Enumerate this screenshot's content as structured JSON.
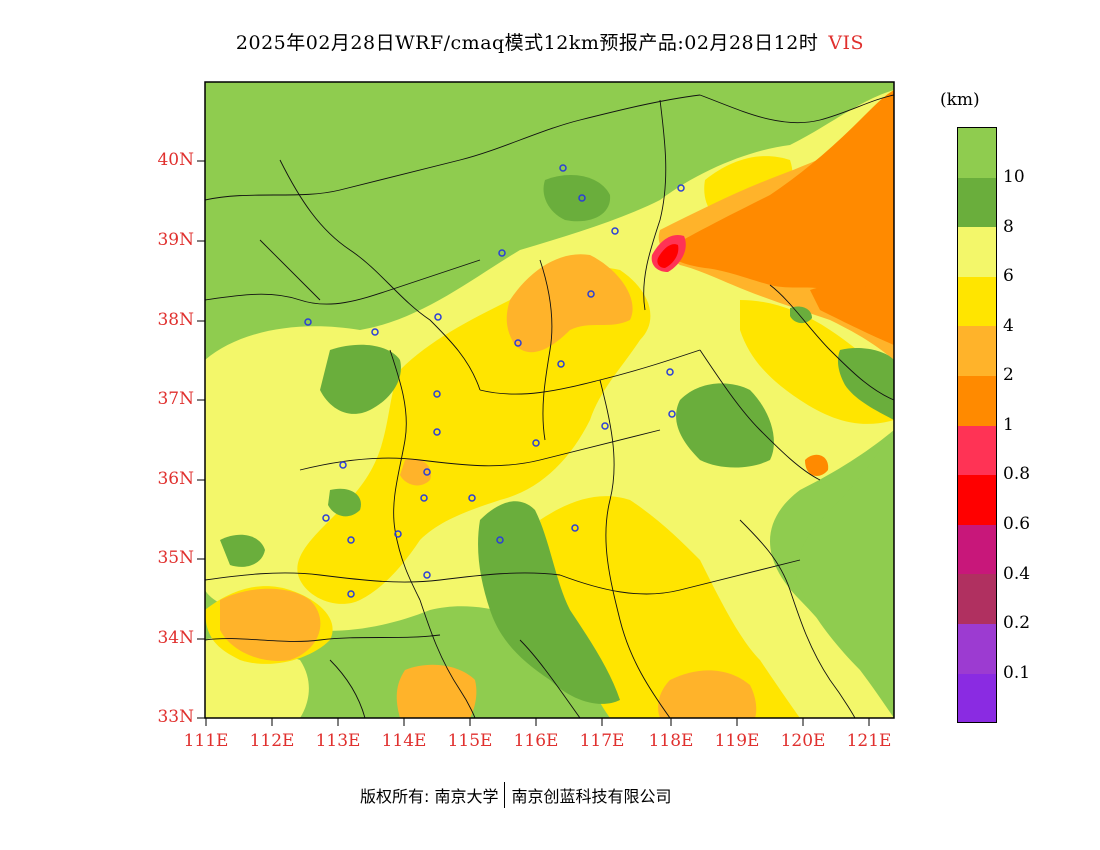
{
  "title": "2025年02月28日WRF/cmaq模式12km预报产品:02月28日12时",
  "variable": "VIS",
  "unit_label": "(km)",
  "credit": {
    "part1": "版权所有: 南京大学",
    "part2": "南京创蓝科技有限公司"
  },
  "lat_labels": [
    "40N",
    "39N",
    "38N",
    "37N",
    "36N",
    "35N",
    "34N",
    "33N"
  ],
  "lon_labels": [
    "111E",
    "112E",
    "113E",
    "114E",
    "115E",
    "116E",
    "117E",
    "118E",
    "119E",
    "120E",
    "121E"
  ],
  "legend": {
    "labels": [
      "10",
      "8",
      "6",
      "4",
      "2",
      "1",
      "0.8",
      "0.6",
      "0.4",
      "0.2",
      "0.1"
    ],
    "colors": [
      "#8fcc4f",
      "#6aae3c",
      "#f3f76a",
      "#ffe500",
      "#ffb32a",
      "#ff8a00",
      "#ff3355",
      "#ff0000",
      "#c8177a",
      "#b03060",
      "#9c3bd1",
      "#8a2be2"
    ]
  },
  "map_colors": {
    "gt10": "#8fcc4f",
    "v8_10": "#6aae3c",
    "v6_8": "#f3f76a",
    "v4_6": "#ffe500",
    "v2_4": "#ffb32a",
    "v1_2": "#ff8a00",
    "v08_1": "#ff3355",
    "v06_08": "#ff0000",
    "city_marker": "#2b3fd6"
  }
}
